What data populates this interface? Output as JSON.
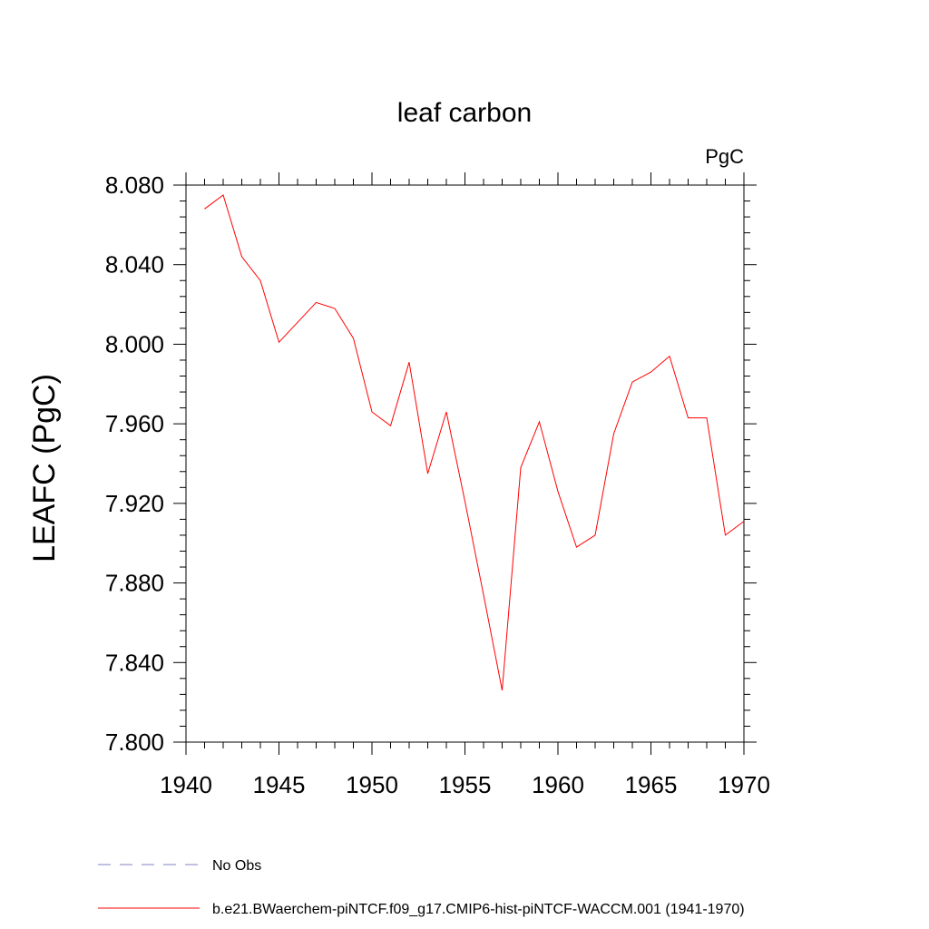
{
  "chart_data": {
    "type": "line",
    "title": "leaf carbon",
    "units_label": "PgC",
    "ylabel": "LEAFC  (PgC)",
    "xlabel": "",
    "xlim": [
      1940,
      1970
    ],
    "ylim": [
      7.8,
      8.09
    ],
    "x_ticks": [
      1940,
      1945,
      1950,
      1955,
      1960,
      1965,
      1970
    ],
    "y_ticks": [
      "7.800",
      "7.840",
      "7.880",
      "7.920",
      "7.960",
      "8.000",
      "8.040",
      "8.080"
    ],
    "grid": false,
    "legend_position": "bottom-left",
    "series": [
      {
        "name": "No Obs",
        "color": "#8080c0",
        "style": "dashed",
        "x": [],
        "values": []
      },
      {
        "name": "b.e21.BWaerchem-piNTCF.f09_g17.CMIP6-hist-piNTCF-WACCM.001 (1941-1970)",
        "color": "#ff0000",
        "style": "solid",
        "x": [
          1941,
          1942,
          1943,
          1944,
          1945,
          1946,
          1947,
          1948,
          1949,
          1950,
          1951,
          1952,
          1953,
          1954,
          1955,
          1956,
          1957,
          1958,
          1959,
          1960,
          1961,
          1962,
          1963,
          1964,
          1965,
          1966,
          1967,
          1968,
          1969,
          1970
        ],
        "values": [
          8.068,
          8.075,
          8.044,
          8.032,
          8.001,
          8.011,
          8.021,
          8.018,
          8.003,
          7.966,
          7.959,
          7.991,
          7.935,
          7.966,
          7.921,
          7.874,
          7.826,
          7.938,
          7.961,
          7.926,
          7.898,
          7.904,
          7.955,
          7.981,
          7.986,
          7.994,
          7.963,
          7.963,
          7.904,
          7.911
        ]
      }
    ]
  }
}
